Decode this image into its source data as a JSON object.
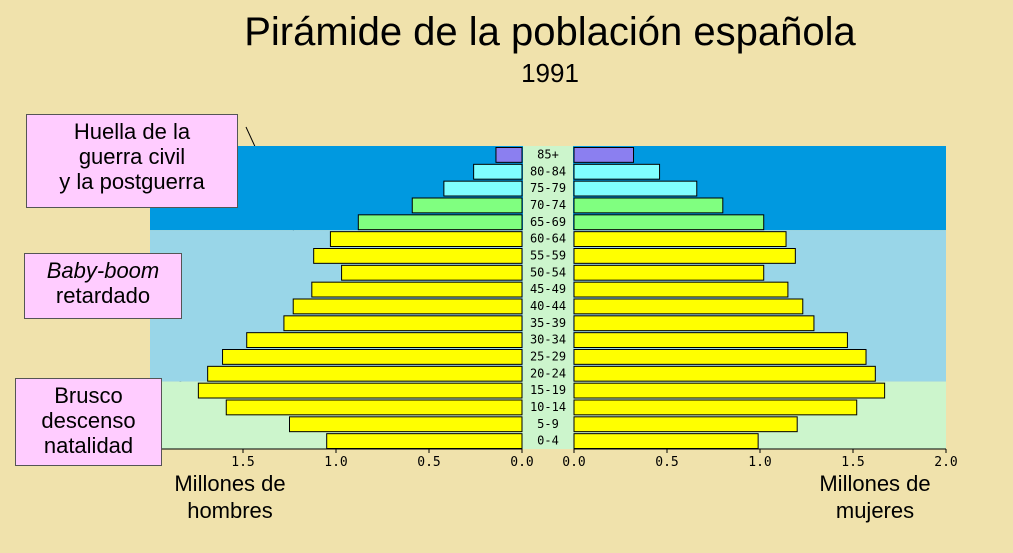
{
  "title": "Pirámide de la población española",
  "subtitle": "1991",
  "notes": [
    {
      "lines": [
        "Huella de la",
        "guerra civil",
        "y la postguerra"
      ],
      "emph": ""
    },
    {
      "lines": [
        "retardado"
      ],
      "emph": "Baby-boom"
    },
    {
      "lines": [
        "Brusco",
        "descenso",
        "natalidad"
      ],
      "emph": ""
    }
  ],
  "unit_left": {
    "line1": "Millones de",
    "line2": "hombres"
  },
  "unit_right": {
    "line1": "Millones de",
    "line2": "mujeres"
  },
  "colors": {
    "background": "#f0e2ac",
    "band_old": "#0099e0",
    "band_adult": "#99d6e8",
    "band_young": "#ccf5cc",
    "age_column": "#ccf5cc",
    "bar_85": "#8b7ff0",
    "bar_75_84": "#80ffff",
    "bar_65_74": "#80ff80",
    "bar_adult": "#ffff00",
    "note_box": "#ffccff"
  },
  "chart_data": {
    "type": "bar",
    "orientation": "horizontal-population-pyramid",
    "title": "Pirámide de la población española",
    "subtitle": "1991",
    "xlabel_left": "Millones de hombres",
    "xlabel_right": "Millones de mujeres",
    "xlim": [
      0,
      2.0
    ],
    "x_ticks": [
      "2.0",
      "1.5",
      "1.0",
      "0.5",
      "0.0"
    ],
    "categories": [
      "85+",
      "80-84",
      "75-79",
      "70-74",
      "65-69",
      "60-64",
      "55-59",
      "50-54",
      "45-49",
      "40-44",
      "35-39",
      "30-34",
      "25-29",
      "20-24",
      "15-19",
      "10-14",
      "5-9",
      "0-4"
    ],
    "series": [
      {
        "name": "hombres",
        "values": [
          0.14,
          0.26,
          0.42,
          0.59,
          0.88,
          1.03,
          1.12,
          0.97,
          1.13,
          1.23,
          1.28,
          1.48,
          1.61,
          1.69,
          1.74,
          1.59,
          1.25,
          1.05
        ]
      },
      {
        "name": "mujeres",
        "values": [
          0.32,
          0.46,
          0.66,
          0.8,
          1.02,
          1.14,
          1.19,
          1.02,
          1.15,
          1.23,
          1.29,
          1.47,
          1.57,
          1.62,
          1.67,
          1.52,
          1.2,
          0.99
        ]
      }
    ]
  }
}
